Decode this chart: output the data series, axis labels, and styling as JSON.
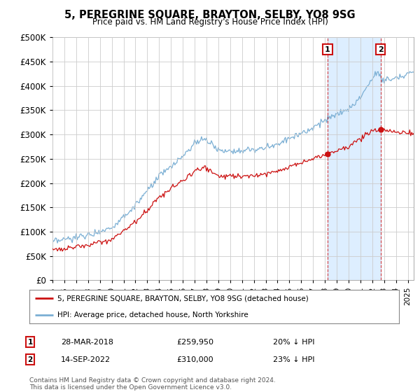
{
  "title": "5, PEREGRINE SQUARE, BRAYTON, SELBY, YO8 9SG",
  "subtitle": "Price paid vs. HM Land Registry's House Price Index (HPI)",
  "ylim": [
    0,
    500000
  ],
  "xlim_start": 1995.0,
  "xlim_end": 2025.5,
  "hpi_color": "#7bafd4",
  "hpi_fill_color": "#ddeeff",
  "property_color": "#cc1111",
  "marker1_x": 2018.23,
  "marker2_x": 2022.71,
  "marker1_price": 259950,
  "marker2_price": 310000,
  "marker1_date": "28-MAR-2018",
  "marker2_date": "14-SEP-2022",
  "marker1_pct": "20%",
  "marker2_pct": "23%",
  "legend_label1": "5, PEREGRINE SQUARE, BRAYTON, SELBY, YO8 9SG (detached house)",
  "legend_label2": "HPI: Average price, detached house, North Yorkshire",
  "footer": "Contains HM Land Registry data © Crown copyright and database right 2024.\nThis data is licensed under the Open Government Licence v3.0.",
  "background_color": "#ffffff",
  "grid_color": "#cccccc"
}
